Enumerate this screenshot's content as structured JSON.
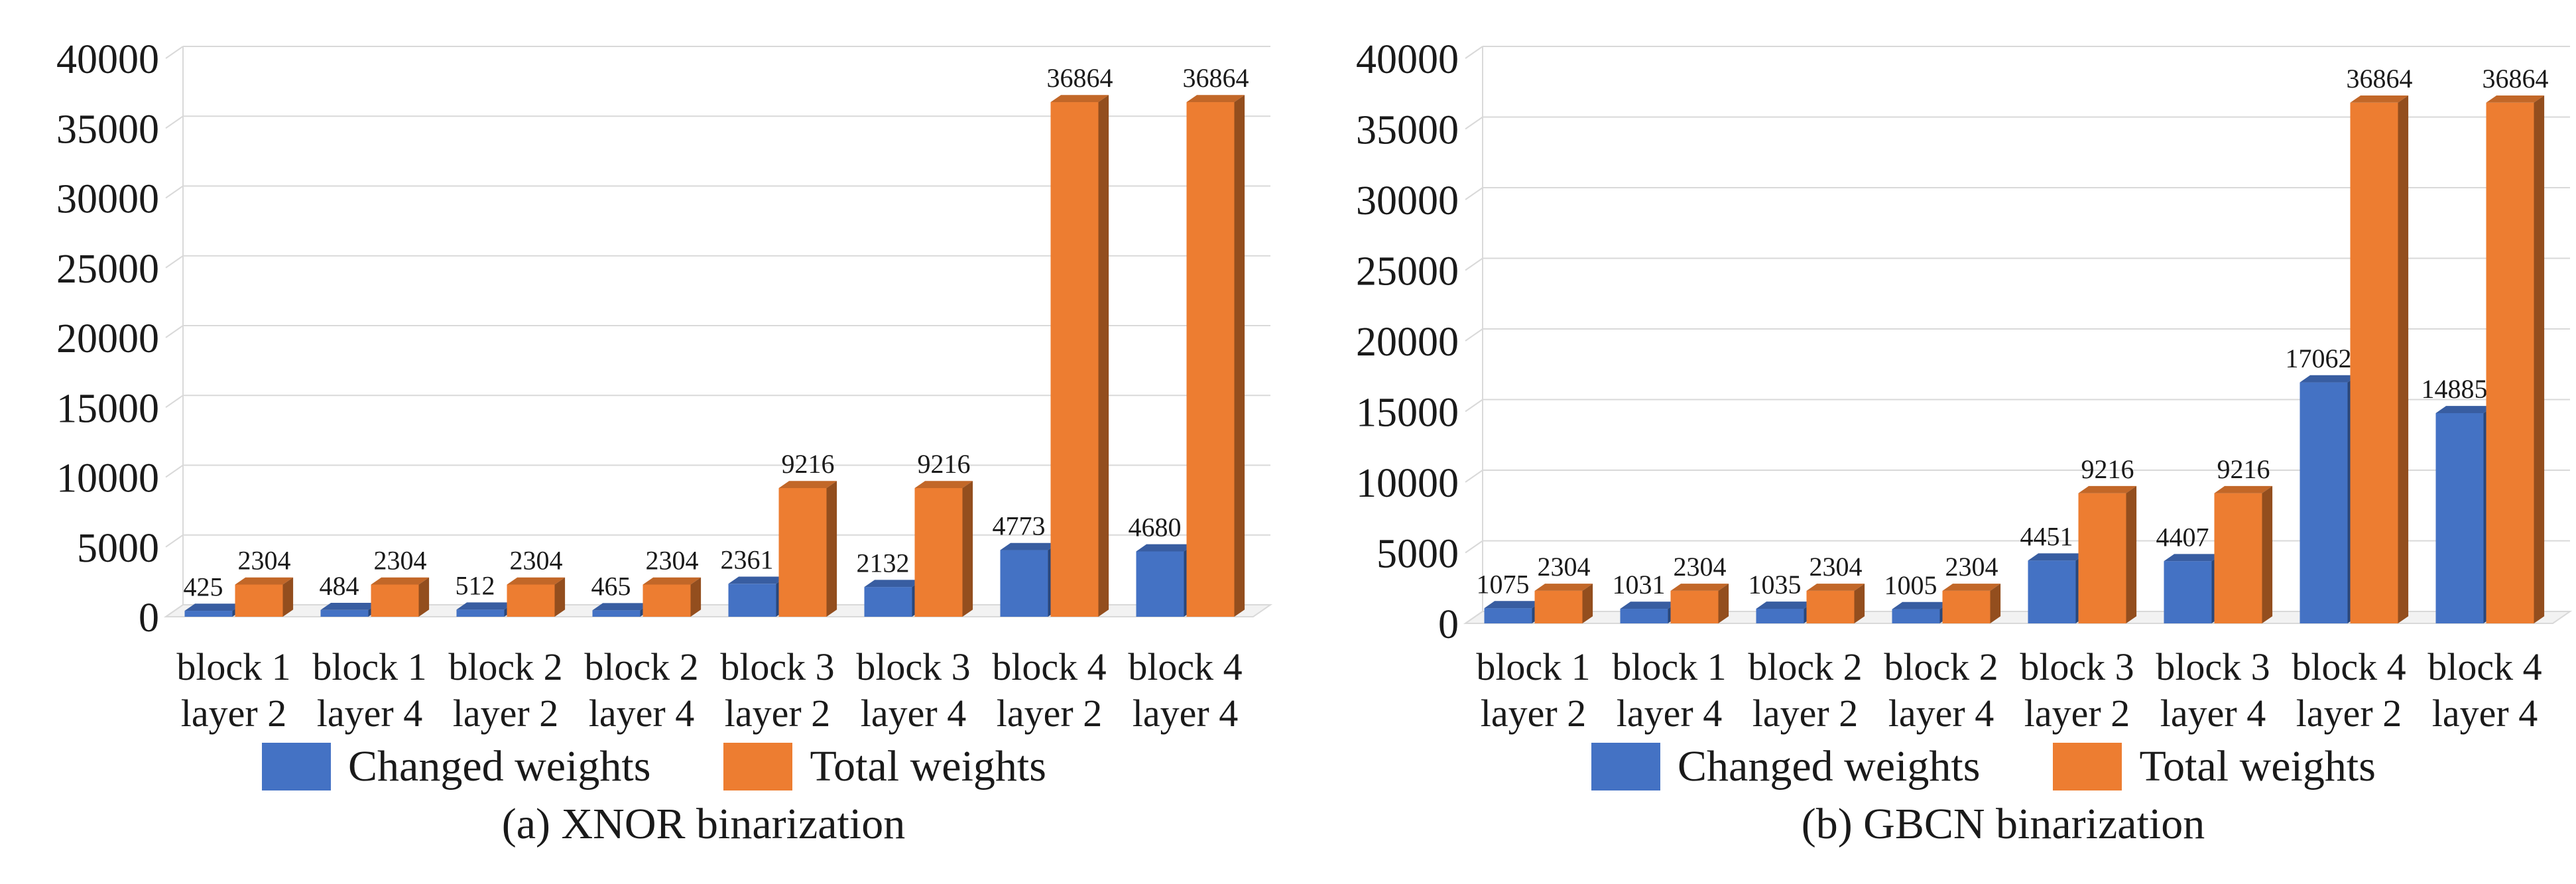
{
  "colors": {
    "changed": "#4472C4",
    "total": "#ED7D31",
    "grid": "#D9D9D9",
    "text": "#1a1a1a"
  },
  "legend": {
    "changed_label": "Changed weights",
    "total_label": "Total weights"
  },
  "chart_data": [
    {
      "type": "bar",
      "caption": "(a) XNOR binarization",
      "categories": [
        [
          "block 1",
          "layer 2"
        ],
        [
          "block 1",
          "layer 4"
        ],
        [
          "block 2",
          "layer 2"
        ],
        [
          "block 2",
          "layer 4"
        ],
        [
          "block 3",
          "layer 2"
        ],
        [
          "block 3",
          "layer 4"
        ],
        [
          "block 4",
          "layer 2"
        ],
        [
          "block 4",
          "layer 4"
        ]
      ],
      "series": [
        {
          "name": "Changed weights",
          "values": [
            425,
            484,
            512,
            465,
            2361,
            2132,
            4773,
            4680
          ]
        },
        {
          "name": "Total weights",
          "values": [
            2304,
            2304,
            2304,
            2304,
            9216,
            9216,
            36864,
            36864
          ]
        }
      ],
      "yticks": [
        "0",
        "5000",
        "10000",
        "15000",
        "20000",
        "25000",
        "30000",
        "35000",
        "40000"
      ],
      "ylim": [
        0,
        40000
      ]
    },
    {
      "type": "bar",
      "caption": "(b) GBCN binarization",
      "categories": [
        [
          "block 1",
          "layer 2"
        ],
        [
          "block 1",
          "layer 4"
        ],
        [
          "block 2",
          "layer 2"
        ],
        [
          "block 2",
          "layer 4"
        ],
        [
          "block 3",
          "layer 2"
        ],
        [
          "block 3",
          "layer 4"
        ],
        [
          "block 4",
          "layer 2"
        ],
        [
          "block 4",
          "layer 4"
        ]
      ],
      "series": [
        {
          "name": "Changed weights",
          "values": [
            1075,
            1031,
            1035,
            1005,
            4451,
            4407,
            17062,
            14885
          ]
        },
        {
          "name": "Total weights",
          "values": [
            2304,
            2304,
            2304,
            2304,
            9216,
            9216,
            36864,
            36864
          ]
        }
      ],
      "yticks": [
        "0",
        "5000",
        "10000",
        "15000",
        "20000",
        "25000",
        "30000",
        "35000",
        "40000"
      ],
      "ylim": [
        0,
        40000
      ]
    }
  ]
}
